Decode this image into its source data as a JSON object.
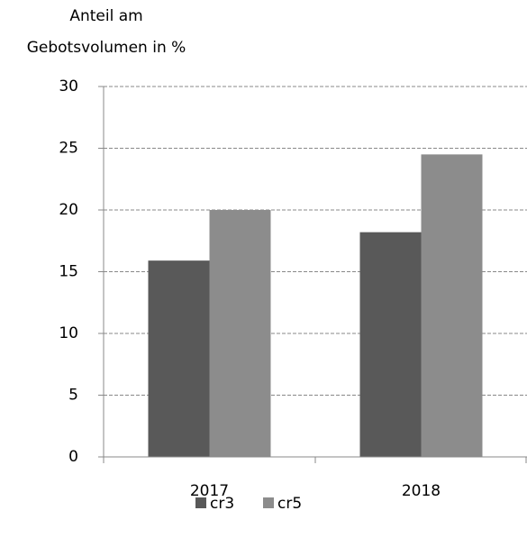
{
  "chart_data": {
    "type": "bar",
    "y_label": [
      "Anteil am",
      "Gebotsvolumen in %"
    ],
    "categories": [
      "2017",
      "2018"
    ],
    "series": [
      {
        "name": "cr3",
        "color": "#595959",
        "values": [
          15.9,
          18.2
        ]
      },
      {
        "name": "cr5",
        "color": "#8c8c8c",
        "values": [
          20.0,
          24.5
        ]
      }
    ],
    "ylim": [
      0,
      30
    ],
    "yticks": [
      0,
      5,
      10,
      15,
      20,
      25,
      30
    ],
    "grid": true,
    "legend": "bottom"
  }
}
